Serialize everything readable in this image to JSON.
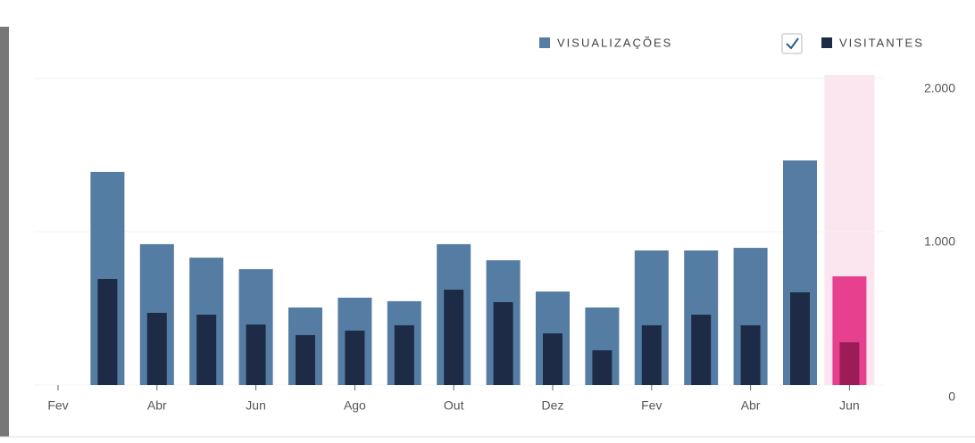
{
  "chart_data": {
    "type": "bar",
    "categories": [
      "Fev",
      null,
      "Abr",
      null,
      "Jun",
      null,
      "Ago",
      null,
      "Out",
      null,
      "Dez",
      null,
      "Fev",
      null,
      "Abr",
      null,
      "Jun"
    ],
    "series": [
      {
        "name": "VISUALIZAÇÕES",
        "color": "#557ca2",
        "values": [
          0,
          1390,
          919,
          831,
          756,
          506,
          570,
          547,
          919,
          814,
          610,
          506,
          878,
          878,
          895,
          1465,
          709
        ]
      },
      {
        "name": "VISITANTES",
        "color": "#1e2b47",
        "values": [
          0,
          692,
          471,
          459,
          395,
          326,
          355,
          390,
          622,
          541,
          337,
          227,
          390,
          459,
          390,
          605,
          279
        ]
      }
    ],
    "ylim": [
      0,
      2000
    ],
    "yticks": [
      0,
      {
        "value": 1000,
        "label": "1.000"
      },
      {
        "value": 2000,
        "label": "2.000"
      }
    ],
    "grid": true,
    "legend": "top-right",
    "highlight": {
      "index": 16,
      "background": "#fbe5ee",
      "colors": [
        "#e6408e",
        "#9c1c57"
      ]
    }
  }
}
